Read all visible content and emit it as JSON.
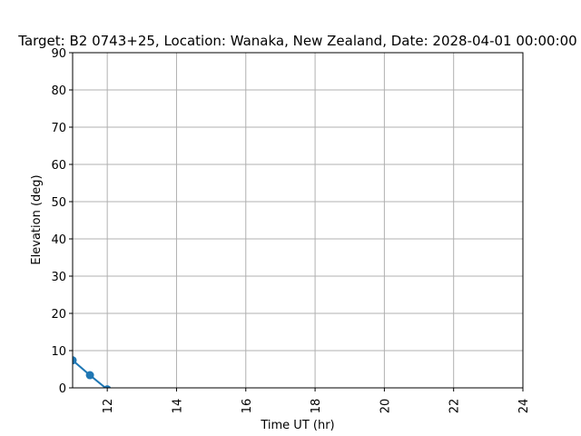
{
  "chart_data": {
    "type": "line",
    "title": "Target: B2 0743+25,  Location: Wanaka, New Zealand, Date: 2028-04-01 00:00:00",
    "xlabel": "Time UT (hr)",
    "ylabel": "Elevation (deg)",
    "xlim": [
      11,
      24
    ],
    "ylim": [
      0,
      90
    ],
    "xticks": [
      "12",
      "14",
      "16",
      "18",
      "20",
      "22",
      "24"
    ],
    "yticks": [
      "0",
      "10",
      "20",
      "30",
      "40",
      "50",
      "60",
      "70",
      "80",
      "90"
    ],
    "grid": true,
    "series": [
      {
        "color": "#1f77b4",
        "x": [
          11.0,
          11.5,
          12.0
        ],
        "y": [
          7.4,
          3.4,
          -0.4
        ]
      }
    ]
  }
}
